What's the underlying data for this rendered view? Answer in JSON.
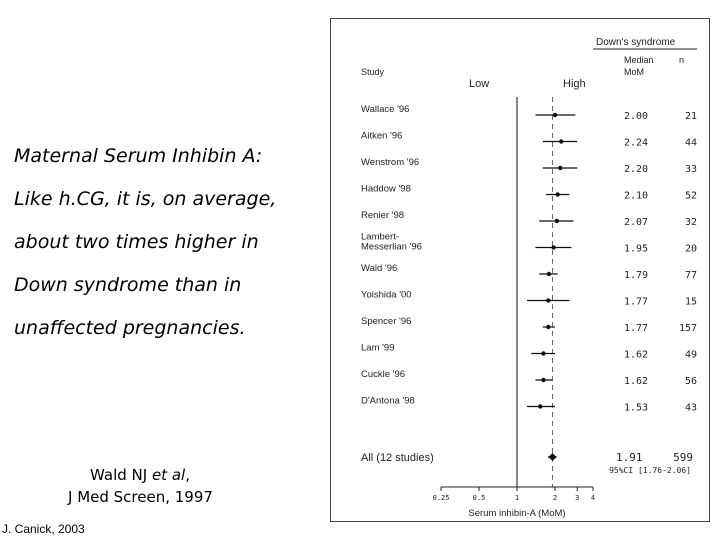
{
  "slide": {
    "text_lines": [
      "Maternal Serum Inhibin A:",
      "Like h.CG, it is, on average,",
      "about two times higher in",
      "Down syndrome than in",
      "unaffected pregnancies."
    ],
    "citation": {
      "authors_prefix": "Wald NJ ",
      "authors_italic": "et al",
      "authors_suffix": ",",
      "journal": "J Med Screen, 1997"
    },
    "credit": "J. Canick, 2003"
  },
  "chart_data": {
    "type": "forest",
    "xlabel": "Serum inhibin-A (MoM)",
    "scale": "log",
    "xlim": [
      0.25,
      4
    ],
    "ticks": [
      0.25,
      0.5,
      1,
      2,
      3,
      4
    ],
    "tick_labels": [
      "0.25",
      "0.5",
      "1",
      "2",
      "3",
      "4"
    ],
    "header": {
      "group": "Down's syndrome",
      "study": "Study",
      "low": "Low",
      "high": "High",
      "median": "Median",
      "mom": "MoM",
      "n": "n"
    },
    "studies": [
      {
        "label": [
          "Wallace '96"
        ],
        "median": 2.0,
        "median_label": "2.00",
        "n": "21",
        "ci": [
          1.4,
          2.9
        ]
      },
      {
        "label": [
          "Aitken '96"
        ],
        "median": 2.24,
        "median_label": "2.24",
        "n": "44",
        "ci": [
          1.6,
          3.0
        ]
      },
      {
        "label": [
          "Wenstrom '96"
        ],
        "median": 2.2,
        "median_label": "2.20",
        "n": "33",
        "ci": [
          1.6,
          3.0
        ]
      },
      {
        "label": [
          "Haddow '98"
        ],
        "median": 2.1,
        "median_label": "2.10",
        "n": "52",
        "ci": [
          1.7,
          2.6
        ]
      },
      {
        "label": [
          "Renier  '98"
        ],
        "median": 2.07,
        "median_label": "2.07",
        "n": "32",
        "ci": [
          1.5,
          2.8
        ]
      },
      {
        "label": [
          "Lambert-",
          "Messerlian '96"
        ],
        "median": 1.95,
        "median_label": "1.95",
        "n": "20",
        "ci": [
          1.4,
          2.7
        ]
      },
      {
        "label": [
          "Wald  '96"
        ],
        "median": 1.79,
        "median_label": "1.79",
        "n": "77",
        "ci": [
          1.5,
          2.1
        ]
      },
      {
        "label": [
          "Yoishida '00"
        ],
        "median": 1.77,
        "median_label": "1.77",
        "n": "15",
        "ci": [
          1.2,
          2.6
        ]
      },
      {
        "label": [
          "Spencer '96"
        ],
        "median": 1.77,
        "median_label": "1.77",
        "n": "157",
        "ci": [
          1.6,
          2.0
        ]
      },
      {
        "label": [
          "Lam  '99"
        ],
        "median": 1.62,
        "median_label": "1.62",
        "n": "49",
        "ci": [
          1.3,
          2.0
        ]
      },
      {
        "label": [
          "Cuckle '96"
        ],
        "median": 1.62,
        "median_label": "1.62",
        "n": "56",
        "ci": [
          1.4,
          1.9
        ]
      },
      {
        "label": [
          "D'Antona '98"
        ],
        "median": 1.53,
        "median_label": "1.53",
        "n": "43",
        "ci": [
          1.2,
          2.0
        ]
      }
    ],
    "summary": {
      "label": "All (12 studies)",
      "median": 1.91,
      "median_label": "1.91",
      "n": "599",
      "ci": [
        1.76,
        2.06
      ],
      "ci_label": "95%CI [1.76-2.06]"
    }
  }
}
